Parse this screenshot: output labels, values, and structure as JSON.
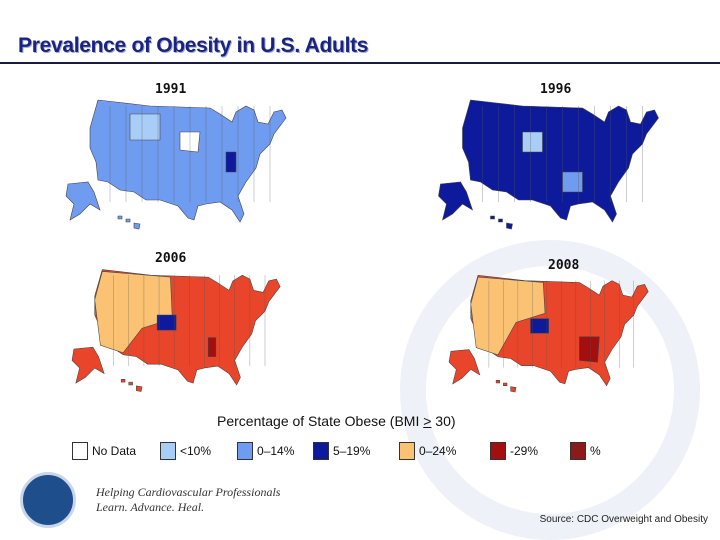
{
  "title": "Prevalence of Obesity in U.S. Adults",
  "maps": [
    {
      "year": "1991",
      "base": "#6f9cf0",
      "accents": [
        "#a8cdf7",
        "#ffffff",
        "#0d1a9c"
      ]
    },
    {
      "year": "1996",
      "base": "#0d1a9c",
      "accents": [
        "#6f9cf0",
        "#a8cdf7"
      ]
    },
    {
      "year": "2006",
      "base": "#e8452a",
      "accents": [
        "#fbc274",
        "#0d1a9c",
        "#a30f0f"
      ]
    },
    {
      "year": "2008",
      "base": "#e8452a",
      "accents": [
        "#fbc274",
        "#0d1a9c",
        "#a30f0f"
      ]
    }
  ],
  "legend": {
    "title_prefix": "Percentage of State Obese (BMI ",
    "title_symbol": ">",
    "title_suffix": " 30)",
    "items": [
      {
        "label": "No Data",
        "color": "#ffffff"
      },
      {
        "label": "<10%",
        "color": "#a8cdf7"
      },
      {
        "label": "0–14%",
        "color": "#6f9cf0"
      },
      {
        "label": "5–19%",
        "color": "#0d1a9c"
      },
      {
        "label": "0–24%",
        "color": "#fbc274"
      },
      {
        "label": "-29%",
        "color": "#a30f0f"
      },
      {
        "label": "%",
        "color": "#8b1a1a"
      }
    ]
  },
  "footer": {
    "tagline1": "Helping Cardiovascular Professionals",
    "tagline2": "Learn. Advance. Heal.",
    "source": "Source: CDC Overweight and Obesity"
  }
}
